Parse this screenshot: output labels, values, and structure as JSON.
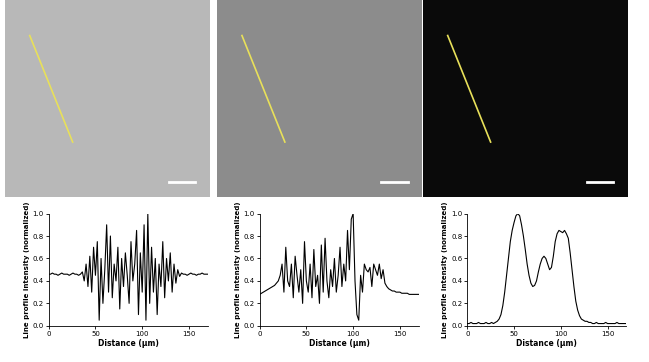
{
  "chart_data": [
    {
      "type": "line",
      "color": "#000000",
      "x_label": "Distance (µm)",
      "y_label": "Line profile intensity (normalized)",
      "xlim": [
        0,
        170
      ],
      "xticks": [
        0,
        50,
        100,
        150
      ],
      "ylim": [
        0,
        1.0
      ],
      "yticks": [
        {
          "value": 0,
          "label": "0.0"
        },
        {
          "value": 0.2,
          "label": "0.2"
        },
        {
          "value": 0.4,
          "label": "0.4"
        },
        {
          "value": 0.6,
          "label": "0.6"
        },
        {
          "value": 0.8,
          "label": "0.8"
        },
        {
          "value": 1.0,
          "label": "1.0"
        }
      ],
      "x": [
        0,
        2,
        4,
        6,
        8,
        10,
        12,
        14,
        16,
        18,
        20,
        22,
        24,
        26,
        28,
        30,
        32,
        34,
        36,
        38,
        40,
        42,
        44,
        46,
        48,
        50,
        52,
        54,
        56,
        58,
        60,
        62,
        64,
        66,
        68,
        70,
        72,
        74,
        76,
        78,
        80,
        82,
        84,
        86,
        88,
        90,
        92,
        94,
        96,
        98,
        100,
        102,
        104,
        106,
        108,
        110,
        112,
        114,
        116,
        118,
        120,
        122,
        124,
        126,
        128,
        130,
        132,
        134,
        136,
        138,
        140,
        142,
        144,
        146,
        148,
        150,
        152,
        154,
        156,
        158,
        160,
        162,
        164,
        166,
        168,
        170
      ],
      "values": [
        0.46,
        0.46,
        0.47,
        0.46,
        0.46,
        0.45,
        0.46,
        0.47,
        0.46,
        0.46,
        0.46,
        0.45,
        0.46,
        0.47,
        0.46,
        0.46,
        0.45,
        0.46,
        0.48,
        0.4,
        0.55,
        0.35,
        0.62,
        0.3,
        0.7,
        0.45,
        0.75,
        0.05,
        0.6,
        0.2,
        0.5,
        0.9,
        0.3,
        0.8,
        0.25,
        0.55,
        0.4,
        0.7,
        0.15,
        0.6,
        0.35,
        0.65,
        0.45,
        0.2,
        0.75,
        0.4,
        0.55,
        0.85,
        0.1,
        0.65,
        0.3,
        0.9,
        0.05,
        1.0,
        0.2,
        0.7,
        0.3,
        0.6,
        0.1,
        0.55,
        0.35,
        0.75,
        0.25,
        0.6,
        0.4,
        0.65,
        0.3,
        0.55,
        0.38,
        0.5,
        0.44,
        0.47,
        0.46,
        0.46,
        0.45,
        0.46,
        0.47,
        0.46,
        0.46,
        0.45,
        0.46,
        0.46,
        0.47,
        0.46,
        0.46,
        0.46
      ]
    },
    {
      "type": "line",
      "color": "#000000",
      "x_label": "Distance (µm)",
      "y_label": "Line profile intensity (normalized)",
      "xlim": [
        0,
        170
      ],
      "xticks": [
        0,
        50,
        100,
        150
      ],
      "ylim": [
        0,
        1.0
      ],
      "yticks": [
        {
          "value": 0,
          "label": "0.0"
        },
        {
          "value": 0.2,
          "label": "0.2"
        },
        {
          "value": 0.4,
          "label": "0.4"
        },
        {
          "value": 0.6,
          "label": "0.6"
        },
        {
          "value": 0.8,
          "label": "0.8"
        },
        {
          "value": 1.0,
          "label": "1.0"
        }
      ],
      "x": [
        0,
        2,
        4,
        6,
        8,
        10,
        12,
        14,
        16,
        18,
        20,
        22,
        24,
        26,
        28,
        30,
        32,
        34,
        36,
        38,
        40,
        42,
        44,
        46,
        48,
        50,
        52,
        54,
        56,
        58,
        60,
        62,
        64,
        66,
        68,
        70,
        72,
        74,
        76,
        78,
        80,
        82,
        84,
        86,
        88,
        90,
        92,
        94,
        96,
        98,
        100,
        102,
        104,
        106,
        108,
        110,
        112,
        114,
        116,
        118,
        120,
        122,
        124,
        126,
        128,
        130,
        132,
        134,
        136,
        138,
        140,
        142,
        144,
        146,
        148,
        150,
        152,
        154,
        156,
        158,
        160,
        162,
        164,
        166,
        168,
        170
      ],
      "values": [
        0.28,
        0.29,
        0.3,
        0.31,
        0.32,
        0.33,
        0.34,
        0.35,
        0.36,
        0.38,
        0.4,
        0.45,
        0.55,
        0.3,
        0.7,
        0.4,
        0.35,
        0.55,
        0.25,
        0.62,
        0.45,
        0.3,
        0.5,
        0.2,
        0.75,
        0.4,
        0.3,
        0.55,
        0.25,
        0.68,
        0.35,
        0.45,
        0.2,
        0.72,
        0.3,
        0.78,
        0.4,
        0.25,
        0.5,
        0.35,
        0.6,
        0.3,
        0.45,
        0.7,
        0.35,
        0.55,
        0.4,
        0.85,
        0.5,
        0.95,
        1.0,
        0.4,
        0.1,
        0.05,
        0.45,
        0.3,
        0.55,
        0.5,
        0.48,
        0.52,
        0.35,
        0.55,
        0.5,
        0.45,
        0.55,
        0.42,
        0.5,
        0.38,
        0.35,
        0.33,
        0.32,
        0.31,
        0.31,
        0.3,
        0.3,
        0.3,
        0.29,
        0.29,
        0.29,
        0.29,
        0.28,
        0.28,
        0.28,
        0.28,
        0.28,
        0.28
      ]
    },
    {
      "type": "line",
      "color": "#000000",
      "x_label": "Distance (µm)",
      "y_label": "Line profile intensity (normalized)",
      "xlim": [
        0,
        170
      ],
      "xticks": [
        0,
        50,
        100,
        150
      ],
      "ylim": [
        0,
        1.0
      ],
      "yticks": [
        {
          "value": 0,
          "label": "0.0"
        },
        {
          "value": 0.2,
          "label": "0.2"
        },
        {
          "value": 0.4,
          "label": "0.4"
        },
        {
          "value": 0.6,
          "label": "0.6"
        },
        {
          "value": 0.8,
          "label": "0.8"
        },
        {
          "value": 1.0,
          "label": "1.0"
        }
      ],
      "x": [
        0,
        2,
        4,
        6,
        8,
        10,
        12,
        14,
        16,
        18,
        20,
        22,
        24,
        26,
        28,
        30,
        32,
        34,
        36,
        38,
        40,
        42,
        44,
        46,
        48,
        50,
        52,
        54,
        56,
        58,
        60,
        62,
        64,
        66,
        68,
        70,
        72,
        74,
        76,
        78,
        80,
        82,
        84,
        86,
        88,
        90,
        92,
        94,
        96,
        98,
        100,
        102,
        104,
        106,
        108,
        110,
        112,
        114,
        116,
        118,
        120,
        122,
        124,
        126,
        128,
        130,
        132,
        134,
        136,
        138,
        140,
        142,
        144,
        146,
        148,
        150,
        152,
        154,
        156,
        158,
        160,
        162,
        164,
        166,
        168,
        170
      ],
      "values": [
        0.02,
        0.02,
        0.03,
        0.02,
        0.02,
        0.02,
        0.03,
        0.02,
        0.02,
        0.02,
        0.03,
        0.02,
        0.02,
        0.03,
        0.02,
        0.03,
        0.04,
        0.06,
        0.1,
        0.18,
        0.3,
        0.45,
        0.6,
        0.75,
        0.85,
        0.92,
        0.98,
        1.0,
        0.98,
        0.9,
        0.8,
        0.68,
        0.55,
        0.45,
        0.38,
        0.35,
        0.36,
        0.4,
        0.48,
        0.55,
        0.6,
        0.62,
        0.6,
        0.55,
        0.5,
        0.52,
        0.62,
        0.75,
        0.82,
        0.85,
        0.84,
        0.83,
        0.85,
        0.82,
        0.78,
        0.65,
        0.5,
        0.35,
        0.22,
        0.14,
        0.09,
        0.06,
        0.05,
        0.04,
        0.04,
        0.03,
        0.03,
        0.02,
        0.02,
        0.03,
        0.02,
        0.02,
        0.02,
        0.02,
        0.03,
        0.02,
        0.02,
        0.02,
        0.02,
        0.02,
        0.03,
        0.02,
        0.02,
        0.02,
        0.02,
        0.02
      ]
    }
  ]
}
